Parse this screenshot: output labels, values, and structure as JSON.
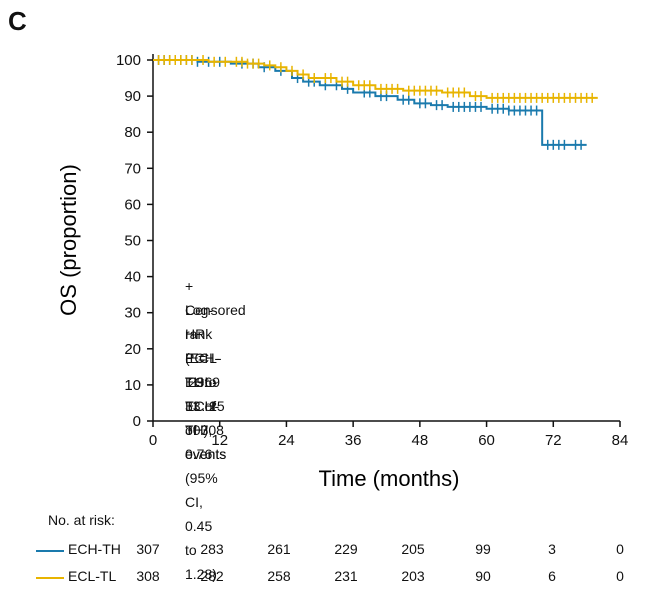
{
  "panel_label": "C",
  "colors": {
    "ech_th": "#1a7aad",
    "ecl_tl": "#e8b400",
    "axis": "#111111"
  },
  "annotations": {
    "censored": "+ Censored",
    "logrank": "Log-rank P = .2969",
    "hr": "HR (ECL-TL to ECH-TH), 0.76 (95% CI, 0.45 to 1.28)",
    "ech_events": "ECH-TH: 33 of 307 events",
    "ecl_events": "ECL-TL: 25 of 308 events"
  },
  "risk_table": {
    "title": "No. at risk:",
    "rows": [
      {
        "name": "ECH-TH",
        "values": [
          "307",
          "283",
          "261",
          "229",
          "205",
          "99",
          "3",
          "0"
        ]
      },
      {
        "name": "ECL-TL",
        "values": [
          "308",
          "282",
          "258",
          "231",
          "203",
          "90",
          "6",
          "0"
        ]
      }
    ]
  },
  "chart_data": {
    "type": "line",
    "title": "",
    "xlabel": "Time (months)",
    "ylabel": "OS (proportion)",
    "xlim": [
      0,
      84
    ],
    "ylim": [
      0,
      100
    ],
    "x_ticks": [
      0,
      12,
      24,
      36,
      48,
      60,
      72,
      84
    ],
    "y_ticks": [
      0,
      10,
      20,
      30,
      40,
      50,
      60,
      70,
      80,
      90,
      100
    ],
    "series": [
      {
        "name": "ECH-TH",
        "color": "#1a7aad",
        "steps": [
          [
            0,
            100
          ],
          [
            8,
            99.5
          ],
          [
            14,
            99
          ],
          [
            19,
            98
          ],
          [
            22,
            97
          ],
          [
            25,
            95
          ],
          [
            27,
            94
          ],
          [
            30,
            93
          ],
          [
            34,
            92
          ],
          [
            36,
            91
          ],
          [
            40,
            90
          ],
          [
            44,
            89
          ],
          [
            47,
            88
          ],
          [
            50,
            87.5
          ],
          [
            53,
            87
          ],
          [
            60,
            86.5
          ],
          [
            64,
            86
          ],
          [
            70,
            76.5
          ],
          [
            78,
            76.5
          ]
        ],
        "censored": [
          1,
          2,
          3,
          4,
          5,
          6,
          7,
          8,
          10,
          12,
          16,
          18,
          20,
          23,
          26,
          28,
          29,
          31,
          33,
          35,
          38,
          39,
          41,
          42,
          45,
          46,
          48,
          49,
          51,
          52,
          54,
          55,
          56,
          57,
          58,
          59,
          61,
          62,
          63,
          64,
          65,
          66,
          67,
          68,
          69,
          71,
          72,
          73,
          74,
          76,
          77
        ]
      },
      {
        "name": "ECL-TL",
        "color": "#e8b400",
        "steps": [
          [
            0,
            100
          ],
          [
            10,
            99.5
          ],
          [
            17,
            99
          ],
          [
            20,
            98.5
          ],
          [
            22,
            98
          ],
          [
            24,
            97
          ],
          [
            26,
            96
          ],
          [
            28,
            95
          ],
          [
            33,
            94
          ],
          [
            36,
            93
          ],
          [
            40,
            92
          ],
          [
            45,
            91.5
          ],
          [
            52,
            91
          ],
          [
            57,
            90
          ],
          [
            60,
            89.5
          ],
          [
            80,
            89.5
          ]
        ],
        "censored": [
          1,
          2,
          3,
          4,
          5,
          6,
          7,
          9,
          11,
          13,
          15,
          16,
          17,
          18,
          19,
          21,
          23,
          25,
          27,
          29,
          31,
          32,
          34,
          35,
          37,
          38,
          39,
          41,
          42,
          43,
          44,
          46,
          47,
          48,
          49,
          50,
          51,
          53,
          54,
          55,
          56,
          58,
          59,
          61,
          62,
          63,
          64,
          65,
          66,
          67,
          68,
          69,
          70,
          71,
          72,
          73,
          74,
          75,
          76,
          77,
          78,
          79
        ]
      }
    ]
  }
}
